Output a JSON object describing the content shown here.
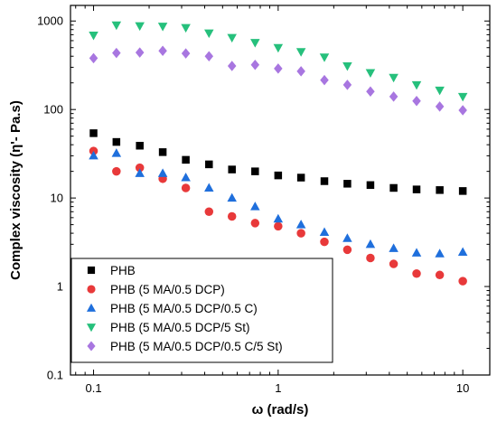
{
  "chart_data": {
    "type": "scatter",
    "xlabel": "ω (rad/s)",
    "ylabel": "Complex viscosity (η'- Pa.s)",
    "xscale": "log",
    "yscale": "log",
    "xlim": [
      0.075,
      14
    ],
    "ylim": [
      0.1,
      1500
    ],
    "xticks": [
      0.1,
      1,
      10
    ],
    "xtick_labels": [
      "0.1",
      "1",
      "10"
    ],
    "yticks": [
      0.1,
      1,
      10,
      100,
      1000
    ],
    "ytick_labels": [
      "0.1",
      "1",
      "10",
      "100",
      "1000"
    ],
    "legend_position": "bottom-left",
    "x": [
      0.1,
      0.133,
      0.178,
      0.237,
      0.316,
      0.422,
      0.562,
      0.75,
      1.0,
      1.33,
      1.78,
      2.37,
      3.16,
      4.22,
      5.62,
      7.5,
      10.0
    ],
    "series": [
      {
        "name": "PHB",
        "marker": "square",
        "color": "#000000",
        "values": [
          54,
          43,
          39,
          33,
          27,
          24,
          21,
          20,
          18,
          17,
          15.5,
          14.5,
          14,
          13,
          12.5,
          12.3,
          12
        ]
      },
      {
        "name": "PHB (5 MA/0.5 DCP)",
        "marker": "circle",
        "color": "#e8393a",
        "values": [
          34,
          20,
          22,
          16.5,
          13,
          7,
          6.2,
          5.2,
          4.8,
          4,
          3.2,
          2.6,
          2.1,
          1.8,
          1.4,
          1.35,
          1.15
        ]
      },
      {
        "name": "PHB (5 MA/0.5 DCP/0.5 C)",
        "marker": "triangle-up",
        "color": "#1f6fdc",
        "values": [
          30,
          32,
          19,
          19,
          17,
          13,
          10,
          8,
          5.8,
          5,
          4.1,
          3.5,
          3.0,
          2.7,
          2.4,
          2.35,
          2.45
        ]
      },
      {
        "name": "PHB (5 MA/0.5 DCP/5 St)",
        "marker": "triangle-down",
        "color": "#26c07c",
        "values": [
          690,
          900,
          880,
          870,
          840,
          730,
          650,
          570,
          500,
          450,
          390,
          310,
          260,
          230,
          190,
          165,
          140
        ]
      },
      {
        "name": "PHB (5 MA/0.5 DCP/0.5 C/5 St)",
        "marker": "diamond",
        "color": "#a876e0",
        "values": [
          380,
          435,
          440,
          460,
          430,
          400,
          310,
          320,
          290,
          270,
          215,
          190,
          160,
          140,
          125,
          108,
          98
        ]
      }
    ]
  }
}
